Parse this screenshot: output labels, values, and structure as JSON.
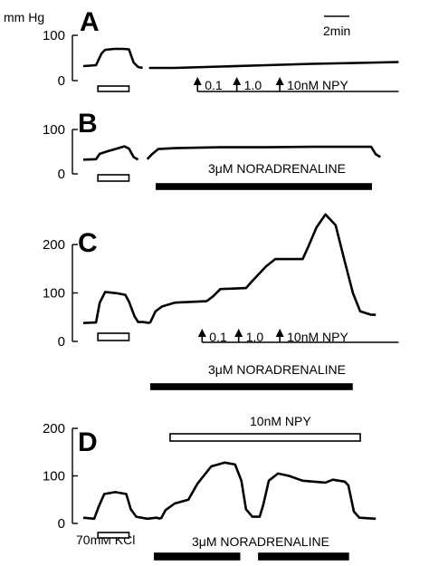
{
  "figure": {
    "y_unit": "mm Hg",
    "time_scale_label": "2min"
  },
  "chart_data": [
    {
      "panel": "A",
      "type": "line",
      "x_unit": "min",
      "xlim": [
        0,
        36
      ],
      "ylim": [
        0,
        100
      ],
      "yticks": [
        0,
        100
      ],
      "trace": [
        [
          [
            0,
            32
          ],
          [
            1.4,
            34
          ],
          [
            2.0,
            60
          ],
          [
            2.4,
            68
          ],
          [
            3.4,
            70
          ],
          [
            4.4,
            70
          ],
          [
            5.0,
            69
          ],
          [
            5.5,
            40
          ],
          [
            6.0,
            30
          ],
          [
            6.5,
            28
          ]
        ],
        [
          [
            7.2,
            28
          ],
          [
            10,
            28
          ],
          [
            15,
            31
          ],
          [
            20,
            34
          ],
          [
            25,
            37
          ],
          [
            30,
            39
          ],
          [
            34.5,
            41
          ]
        ]
      ],
      "bars": [
        {
          "label": "",
          "start": 1.6,
          "end": 5.0,
          "fill": "open"
        }
      ],
      "arrows": [
        {
          "x": 12.5,
          "label": "0.1"
        },
        {
          "x": 16.8,
          "label": "1.0"
        },
        {
          "x": 21.5,
          "label": "10nM NPY"
        }
      ]
    },
    {
      "panel": "B",
      "type": "line",
      "x_unit": "min",
      "xlim": [
        0,
        36
      ],
      "ylim": [
        0,
        100
      ],
      "yticks": [
        0,
        100
      ],
      "trace": [
        [
          [
            0,
            32
          ],
          [
            1.4,
            33
          ],
          [
            1.8,
            45
          ],
          [
            2.5,
            50
          ],
          [
            3.5,
            56
          ],
          [
            4.5,
            62
          ],
          [
            5.0,
            57
          ],
          [
            5.5,
            38
          ],
          [
            6.0,
            32
          ]
        ],
        [
          [
            7.0,
            33
          ],
          [
            7.5,
            44
          ],
          [
            8.2,
            56
          ],
          [
            10,
            58
          ],
          [
            15,
            60
          ],
          [
            20,
            60
          ],
          [
            25,
            61
          ],
          [
            30,
            61
          ],
          [
            31.5,
            61
          ],
          [
            32,
            44
          ],
          [
            32.5,
            38
          ]
        ]
      ],
      "bars": [
        {
          "label": "",
          "start": 1.6,
          "end": 5.0,
          "fill": "open"
        },
        {
          "label": "3μM NORADRENALINE",
          "start": 8.0,
          "end": 31.5,
          "fill": "solid"
        }
      ],
      "arrows": []
    },
    {
      "panel": "C",
      "type": "line",
      "x_unit": "min",
      "xlim": [
        0,
        36
      ],
      "ylim": [
        0,
        250
      ],
      "yticks": [
        0,
        100,
        200
      ],
      "trace": [
        [
          [
            0,
            38
          ],
          [
            1.4,
            39
          ],
          [
            1.8,
            80
          ],
          [
            2.4,
            102
          ],
          [
            3.8,
            99
          ],
          [
            4.6,
            96
          ],
          [
            5.0,
            82
          ],
          [
            5.6,
            52
          ],
          [
            6.0,
            40
          ],
          [
            6.5,
            40
          ],
          [
            7.3,
            38
          ]
        ],
        [
          [
            7.3,
            38
          ],
          [
            7.9,
            62
          ],
          [
            8.6,
            72
          ],
          [
            10,
            80
          ],
          [
            13.5,
            83
          ],
          [
            14.2,
            93
          ],
          [
            15,
            108
          ],
          [
            17.8,
            110
          ],
          [
            18.5,
            125
          ],
          [
            20,
            155
          ],
          [
            21,
            170
          ],
          [
            24,
            170
          ],
          [
            24.6,
            195
          ],
          [
            25.5,
            235
          ],
          [
            26.5,
            262
          ],
          [
            27.6,
            240
          ],
          [
            28.6,
            165
          ],
          [
            29.5,
            100
          ],
          [
            30.3,
            62
          ],
          [
            31.5,
            55
          ],
          [
            32,
            55
          ]
        ]
      ],
      "bars": [
        {
          "label": "",
          "start": 1.6,
          "end": 5.0,
          "fill": "open"
        },
        {
          "label": "3μM NORADRENALINE",
          "start": 7.4,
          "end": 29.4,
          "fill": "solid"
        }
      ],
      "arrows": [
        {
          "x": 13.0,
          "label": "0.1"
        },
        {
          "x": 17.0,
          "label": "1.0"
        },
        {
          "x": 21.5,
          "label": "10nM NPY"
        }
      ]
    },
    {
      "panel": "D",
      "type": "line",
      "x_unit": "min",
      "xlim": [
        0,
        36
      ],
      "ylim": [
        0,
        200
      ],
      "yticks": [
        0,
        100,
        200
      ],
      "trace": [
        [
          [
            0,
            12
          ],
          [
            1.2,
            10
          ],
          [
            1.7,
            36
          ],
          [
            2.3,
            62
          ],
          [
            3.5,
            66
          ],
          [
            4.7,
            62
          ],
          [
            5.2,
            30
          ],
          [
            5.8,
            14
          ],
          [
            7.0,
            10
          ],
          [
            8.0,
            12
          ],
          [
            8.5,
            10
          ]
        ],
        [
          [
            8.5,
            10
          ],
          [
            9.0,
            28
          ],
          [
            10.0,
            42
          ],
          [
            11.5,
            50
          ],
          [
            12.5,
            84
          ],
          [
            14,
            120
          ],
          [
            15.5,
            128
          ],
          [
            16.6,
            124
          ],
          [
            17.3,
            90
          ],
          [
            17.8,
            30
          ],
          [
            18.5,
            14
          ],
          [
            19.3,
            14
          ],
          [
            19.7,
            40
          ],
          [
            20.3,
            90
          ],
          [
            21.3,
            105
          ],
          [
            22.5,
            100
          ],
          [
            24,
            90
          ],
          [
            26.5,
            86
          ],
          [
            27.3,
            92
          ],
          [
            28.6,
            88
          ],
          [
            29.0,
            80
          ],
          [
            29.6,
            25
          ],
          [
            30.2,
            12
          ],
          [
            32,
            10
          ]
        ]
      ],
      "bars": [
        {
          "label": "70mM KCl",
          "start": 1.6,
          "end": 5.0,
          "fill": "open"
        },
        {
          "label": "10nM NPY",
          "start": 9.5,
          "end": 30.3,
          "fill": "open"
        },
        {
          "label": "",
          "start": 7.8,
          "end": 17.1,
          "fill": "solid"
        },
        {
          "label": "",
          "start": 19.2,
          "end": 29.0,
          "fill": "solid"
        }
      ],
      "arrows": [],
      "extra_label": "3μM NORADRENALINE"
    }
  ]
}
